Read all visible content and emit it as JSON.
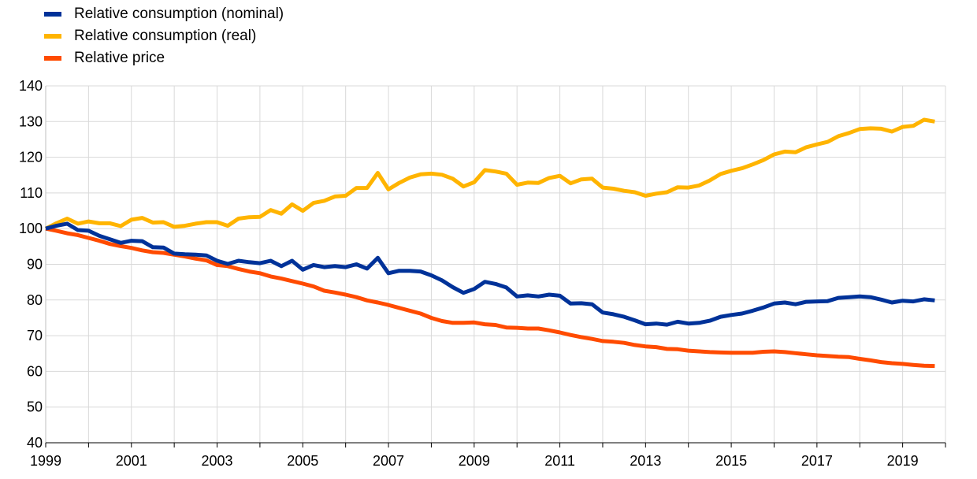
{
  "chart_data": {
    "type": "line",
    "title": "",
    "xlabel": "",
    "ylabel": "",
    "ylim": [
      40,
      140
    ],
    "yticks": [
      "140",
      "130",
      "120",
      "110",
      "100",
      "90",
      "80",
      "70",
      "60",
      "50",
      "40"
    ],
    "xticks": [
      "1999",
      "2001",
      "2003",
      "2005",
      "2007",
      "2009",
      "2011",
      "2013",
      "2015",
      "2017",
      "2019"
    ],
    "x_start_year": 1999,
    "x_end_year": 2020,
    "grid": true,
    "legend_position": "top-left",
    "x": [
      "1999Q1",
      "1999Q2",
      "1999Q3",
      "1999Q4",
      "2000Q1",
      "2000Q2",
      "2000Q3",
      "2000Q4",
      "2001Q1",
      "2001Q2",
      "2001Q3",
      "2001Q4",
      "2002Q1",
      "2002Q2",
      "2002Q3",
      "2002Q4",
      "2003Q1",
      "2003Q2",
      "2003Q3",
      "2003Q4",
      "2004Q1",
      "2004Q2",
      "2004Q3",
      "2004Q4",
      "2005Q1",
      "2005Q2",
      "2005Q3",
      "2005Q4",
      "2006Q1",
      "2006Q2",
      "2006Q3",
      "2006Q4",
      "2007Q1",
      "2007Q2",
      "2007Q3",
      "2007Q4",
      "2008Q1",
      "2008Q2",
      "2008Q3",
      "2008Q4",
      "2009Q1",
      "2009Q2",
      "2009Q3",
      "2009Q4",
      "2010Q1",
      "2010Q2",
      "2010Q3",
      "2010Q4",
      "2011Q1",
      "2011Q2",
      "2011Q3",
      "2011Q4",
      "2012Q1",
      "2012Q2",
      "2012Q3",
      "2012Q4",
      "2013Q1",
      "2013Q2",
      "2013Q3",
      "2013Q4",
      "2014Q1",
      "2014Q2",
      "2014Q3",
      "2014Q4",
      "2015Q1",
      "2015Q2",
      "2015Q3",
      "2015Q4",
      "2016Q1",
      "2016Q2",
      "2016Q3",
      "2016Q4",
      "2017Q1",
      "2017Q2",
      "2017Q3",
      "2017Q4",
      "2018Q1",
      "2018Q2",
      "2018Q3",
      "2018Q4",
      "2019Q1",
      "2019Q2",
      "2019Q3",
      "2019Q4"
    ],
    "series": [
      {
        "name": "Relative consumption (nominal)",
        "color": "#003299",
        "values": [
          100,
          100.8,
          101.4,
          99.6,
          99.4,
          98,
          97,
          96,
          96.6,
          96.5,
          94.8,
          94.7,
          93,
          92.8,
          92.7,
          92.5,
          91,
          90.1,
          91,
          90.6,
          90.3,
          91,
          89.5,
          91,
          88.5,
          89.8,
          89.2,
          89.5,
          89.2,
          90,
          88.8,
          91.8,
          87.5,
          88.2,
          88.2,
          88,
          86.9,
          85.5,
          83.6,
          82,
          83.1,
          85.1,
          84.5,
          83.5,
          81,
          81.3,
          81,
          81.5,
          81.2,
          79,
          79.1,
          78.8,
          76.5,
          76,
          75.3,
          74.3,
          73.2,
          73.4,
          73.1,
          73.9,
          73.4,
          73.6,
          74.2,
          75.3,
          75.8,
          76.2,
          77,
          77.9,
          79,
          79.3,
          78.8,
          79.5,
          79.6,
          79.7,
          80.6,
          80.8,
          81,
          80.8,
          80.1,
          79.3,
          79.8,
          79.6,
          80.2,
          79.9
        ]
      },
      {
        "name": "Relative consumption (real)",
        "color": "#FFB400",
        "values": [
          100,
          101.5,
          102.8,
          101.4,
          102,
          101.5,
          101.5,
          100.7,
          102.5,
          103,
          101.7,
          101.8,
          100.5,
          100.8,
          101.4,
          101.8,
          101.8,
          100.8,
          102.8,
          103.2,
          103.3,
          105.2,
          104.2,
          106.8,
          105,
          107.2,
          107.8,
          109,
          109.2,
          111.4,
          111.4,
          115.6,
          111,
          112.8,
          114.3,
          115.2,
          115.4,
          115.1,
          114,
          111.8,
          113,
          116.4,
          116,
          115.4,
          112.3,
          112.9,
          112.8,
          114.2,
          114.8,
          112.7,
          113.8,
          114,
          111.5,
          111.2,
          110.6,
          110.2,
          109.2,
          109.8,
          110.2,
          111.6,
          111.5,
          112.1,
          113.5,
          115.3,
          116.2,
          116.9,
          118,
          119.2,
          120.8,
          121.6,
          121.4,
          122.8,
          123.6,
          124.3,
          125.9,
          126.8,
          127.9,
          128.1,
          128,
          127.2,
          128.5,
          128.8,
          130.5,
          130
        ]
      },
      {
        "name": "Relative price",
        "color": "#FF4B00",
        "values": [
          100,
          99.4,
          98.7,
          98.2,
          97.4,
          96.6,
          95.7,
          95.1,
          94.6,
          93.9,
          93.4,
          93.2,
          92.7,
          92.2,
          91.6,
          91.1,
          89.8,
          89.5,
          88.7,
          88,
          87.5,
          86.6,
          86,
          85.3,
          84.6,
          83.8,
          82.6,
          82.1,
          81.5,
          80.8,
          79.9,
          79.3,
          78.6,
          77.8,
          77,
          76.2,
          75,
          74.1,
          73.6,
          73.6,
          73.7,
          73.2,
          73,
          72.3,
          72.2,
          72,
          72,
          71.5,
          70.9,
          70.2,
          69.6,
          69.1,
          68.5,
          68.3,
          68,
          67.4,
          67,
          66.8,
          66.3,
          66.2,
          65.8,
          65.6,
          65.4,
          65.3,
          65.2,
          65.2,
          65.2,
          65.5,
          65.6,
          65.4,
          65.1,
          64.8,
          64.5,
          64.3,
          64.1,
          64,
          63.5,
          63.1,
          62.6,
          62.3,
          62.1,
          61.8,
          61.6,
          61.5
        ]
      }
    ]
  }
}
